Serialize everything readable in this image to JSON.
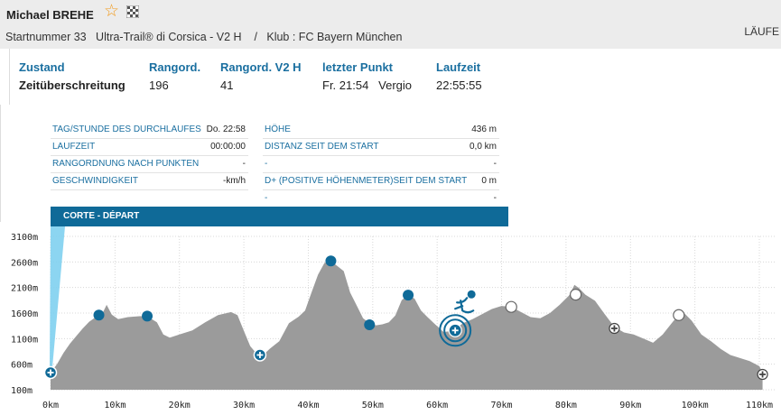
{
  "header": {
    "runner_name": "Michael BREHE",
    "star_icon": "star-outline-icon",
    "flag_icon": "checkered-flag-icon",
    "bib_line": "Startnummer 33   Ultra-Trail® di Corsica - V2 H    /   Klub : FC Bayern München",
    "right_tab": "LÄUFE"
  },
  "summary": {
    "zustand_label": "Zustand",
    "zustand_value": "Zeitüberschreitung",
    "rangord_label": "Rangord.",
    "rangord_value": "196",
    "rangord_v2h_label": "Rangord. V2 H",
    "rangord_v2h_value": "41",
    "letzter_label": "letzter Punkt",
    "letzter_value": "Fr. 21:54   Vergio",
    "laufzeit_label": "Laufzeit",
    "laufzeit_value": "22:55:55"
  },
  "details": {
    "left": [
      {
        "label": "TAG/STUNDE DES DURCHLAUFES",
        "value": "Do. 22:58"
      },
      {
        "label": "LAUFZEIT",
        "value": "00:00:00"
      },
      {
        "label": "RANGORDNUNG NACH PUNKTEN",
        "value": "-"
      },
      {
        "label": "GESCHWINDIGKEIT",
        "value": "-km/h"
      }
    ],
    "right": [
      {
        "label": "HÖHE",
        "value": "436 m"
      },
      {
        "label": "DISTANZ SEIT DEM START",
        "value": "0,0 km"
      },
      {
        "label": "-",
        "value": "-"
      },
      {
        "label": "D+ (POSITIVE HÖHENMETER)SEIT DEM START",
        "value": "0 m"
      },
      {
        "label": "-",
        "value": "-"
      }
    ]
  },
  "checkpoint_name": "CORTE - DÉPART",
  "colors": {
    "accent": "#0f6a98",
    "label_blue": "#1a6fa0",
    "profile_fill": "#9b9b9b",
    "star": "#f29a1a"
  },
  "chart_data": {
    "type": "area",
    "ytick_labels": [
      "3100m",
      "2600m",
      "2100m",
      "1600m",
      "1100m",
      "600m",
      "100m"
    ],
    "ytick_values": [
      3100,
      2600,
      2100,
      1600,
      1100,
      600,
      100
    ],
    "xtick_labels": [
      "0km",
      "10km",
      "20km",
      "30km",
      "40km",
      "50km",
      "60km",
      "70km",
      "80km",
      "90km",
      "100km",
      "110km"
    ],
    "xtick_values": [
      0,
      10,
      20,
      30,
      40,
      50,
      60,
      70,
      80,
      90,
      100,
      110
    ],
    "xlim": [
      0,
      110
    ],
    "ylim": [
      100,
      3100
    ],
    "grid": true,
    "profile": [
      [
        0,
        436
      ],
      [
        1,
        600
      ],
      [
        2,
        820
      ],
      [
        3,
        1000
      ],
      [
        4,
        1150
      ],
      [
        5,
        1300
      ],
      [
        6,
        1430
      ],
      [
        7,
        1520
      ],
      [
        8,
        1580
      ],
      [
        8.7,
        1760
      ],
      [
        9.5,
        1570
      ],
      [
        10.5,
        1480
      ],
      [
        12,
        1520
      ],
      [
        14,
        1540
      ],
      [
        15.5,
        1500
      ],
      [
        16.5,
        1420
      ],
      [
        17.5,
        1180
      ],
      [
        18.5,
        1120
      ],
      [
        20,
        1180
      ],
      [
        22,
        1260
      ],
      [
        24,
        1420
      ],
      [
        26,
        1560
      ],
      [
        28,
        1620
      ],
      [
        29,
        1560
      ],
      [
        30,
        1250
      ],
      [
        31,
        950
      ],
      [
        32,
        800
      ],
      [
        33,
        780
      ],
      [
        34,
        900
      ],
      [
        35.5,
        1050
      ],
      [
        37,
        1400
      ],
      [
        38.5,
        1530
      ],
      [
        39.5,
        1650
      ],
      [
        40.5,
        2000
      ],
      [
        41.5,
        2350
      ],
      [
        42.5,
        2580
      ],
      [
        43.5,
        2620
      ],
      [
        44.5,
        2520
      ],
      [
        45.5,
        2420
      ],
      [
        46.5,
        2000
      ],
      [
        47.5,
        1750
      ],
      [
        48.5,
        1500
      ],
      [
        49.5,
        1400
      ],
      [
        50.5,
        1360
      ],
      [
        51.5,
        1380
      ],
      [
        52.5,
        1420
      ],
      [
        53.5,
        1550
      ],
      [
        54.5,
        1850
      ],
      [
        55.5,
        1960
      ],
      [
        56.5,
        1880
      ],
      [
        57.5,
        1650
      ],
      [
        58.5,
        1520
      ],
      [
        59.5,
        1400
      ],
      [
        61,
        1230
      ],
      [
        62.5,
        1250
      ],
      [
        64,
        1400
      ],
      [
        65.5,
        1480
      ],
      [
        67,
        1580
      ],
      [
        68.5,
        1680
      ],
      [
        70,
        1740
      ],
      [
        71.5,
        1720
      ],
      [
        73,
        1620
      ],
      [
        74.5,
        1520
      ],
      [
        76,
        1500
      ],
      [
        77.5,
        1600
      ],
      [
        79,
        1760
      ],
      [
        80.5,
        1950
      ],
      [
        81.3,
        2150
      ],
      [
        82,
        2090
      ],
      [
        83,
        1960
      ],
      [
        84.5,
        1840
      ],
      [
        86,
        1580
      ],
      [
        87.5,
        1330
      ],
      [
        89,
        1220
      ],
      [
        90.5,
        1180
      ],
      [
        92,
        1100
      ],
      [
        93.5,
        1020
      ],
      [
        95,
        1180
      ],
      [
        96.5,
        1420
      ],
      [
        97.5,
        1570
      ],
      [
        98.5,
        1580
      ],
      [
        99.5,
        1450
      ],
      [
        101,
        1180
      ],
      [
        102.5,
        1050
      ],
      [
        104,
        900
      ],
      [
        105.5,
        780
      ],
      [
        107,
        720
      ],
      [
        108.5,
        660
      ],
      [
        110,
        560
      ],
      [
        110.5,
        436
      ]
    ],
    "checkpoints": [
      {
        "km": 0,
        "alt": 436,
        "style": "start"
      },
      {
        "km": 7.5,
        "alt": 1560,
        "style": "filled"
      },
      {
        "km": 15,
        "alt": 1540,
        "style": "filled"
      },
      {
        "km": 32.5,
        "alt": 780,
        "style": "aid"
      },
      {
        "km": 43.5,
        "alt": 2620,
        "style": "filled"
      },
      {
        "km": 49.5,
        "alt": 1370,
        "style": "filled"
      },
      {
        "km": 55.5,
        "alt": 1950,
        "style": "filled"
      },
      {
        "km": 62.8,
        "alt": 1260,
        "style": "current"
      },
      {
        "km": 71.5,
        "alt": 1720,
        "style": "open"
      },
      {
        "km": 81.5,
        "alt": 1960,
        "style": "open"
      },
      {
        "km": 87.5,
        "alt": 1300,
        "style": "open-aid"
      },
      {
        "km": 97.5,
        "alt": 1560,
        "style": "open"
      },
      {
        "km": 110.5,
        "alt": 400,
        "style": "open-aid"
      }
    ]
  }
}
